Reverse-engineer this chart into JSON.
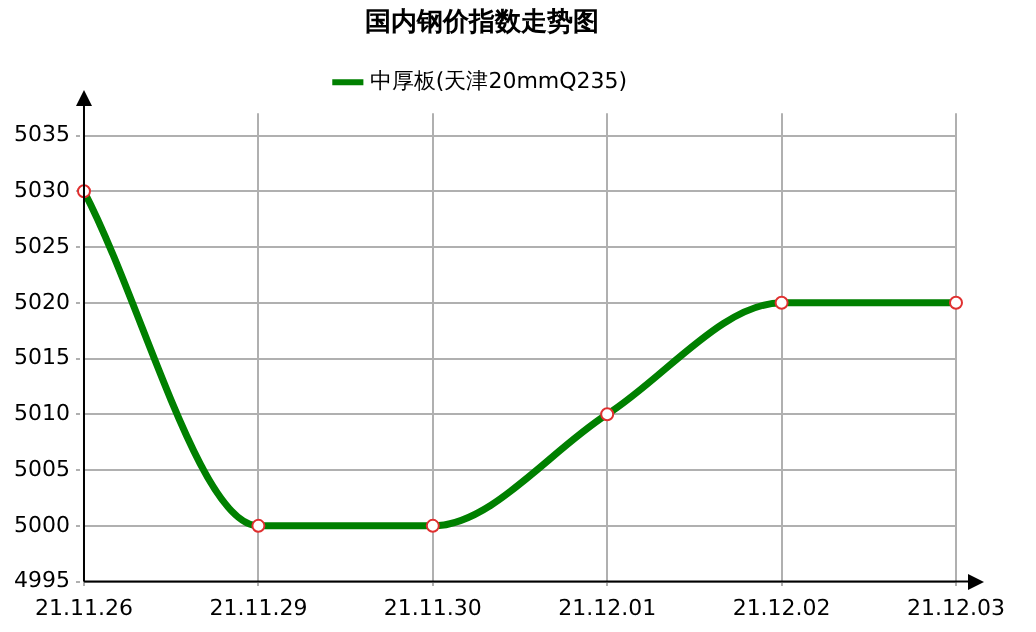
{
  "chart_data": {
    "type": "line",
    "title": "国内钢价指数走势图",
    "categories": [
      "21.11.26",
      "21.11.29",
      "21.11.30",
      "21.12.01",
      "21.12.02",
      "21.12.03"
    ],
    "series": [
      {
        "name": "中厚板(天津20mmQ235)",
        "color": "#008000",
        "values": [
          5030,
          5000,
          5000,
          5010,
          5020,
          5020
        ]
      }
    ],
    "ylim": [
      4995,
      5037
    ],
    "yticks": [
      4995,
      5000,
      5005,
      5010,
      5015,
      5020,
      5025,
      5030,
      5035
    ],
    "grid": true,
    "legend": "top",
    "marker": "circle",
    "line_style": "solid"
  }
}
